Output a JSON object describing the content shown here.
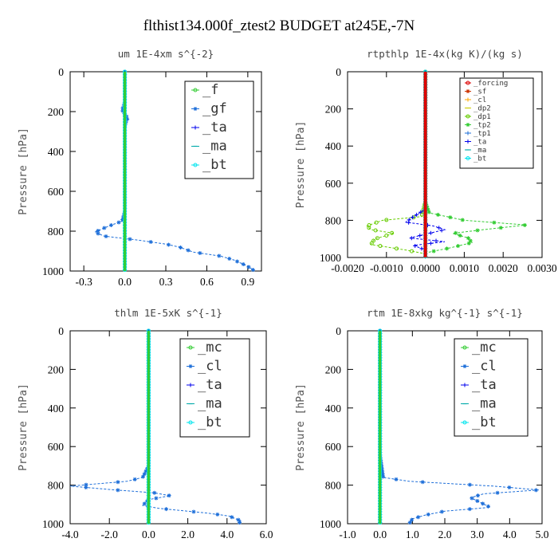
{
  "figure_title": "flthist134.000f_ztest2  BUDGET at245E,-7N",
  "chart_data": [
    {
      "type": "line",
      "title": "um  1E-4xm s^{-2}",
      "ylabel": "Pressure [hPa]",
      "xlim": [
        -0.4,
        1.0
      ],
      "ylim": [
        1000,
        0
      ],
      "xticks": [
        "-0.3",
        "0.0",
        "0.3",
        "0.6",
        "0.9"
      ],
      "xtick_values": [
        -0.3,
        0.0,
        0.3,
        0.6,
        0.9
      ],
      "yticks": [
        "0",
        "200",
        "400",
        "600",
        "800",
        "1000"
      ],
      "ytick_values": [
        0,
        200,
        400,
        600,
        800,
        1000
      ],
      "legend": {
        "placement": "top-right",
        "size": "big"
      },
      "series": [
        {
          "name": "_f",
          "color": "#33cc33",
          "marker": "o",
          "values": [
            [
              0,
              0
            ],
            [
              0,
              1000
            ]
          ]
        },
        {
          "name": "_gf",
          "color": "#1e6fd9",
          "marker": "*",
          "values": [
            [
              0,
              0
            ],
            [
              0,
              150
            ],
            [
              -0.01,
              175
            ],
            [
              -0.02,
              190
            ],
            [
              -0.01,
              205
            ],
            [
              0.01,
              220
            ],
            [
              0.02,
              235
            ],
            [
              0.01,
              250
            ],
            [
              0,
              275
            ],
            [
              0,
              700
            ],
            [
              -0.02,
              750
            ],
            [
              -0.12,
              775
            ],
            [
              -0.22,
              805
            ],
            [
              -0.15,
              825
            ],
            [
              0.1,
              845
            ],
            [
              0.3,
              865
            ],
            [
              0.4,
              880
            ],
            [
              0.5,
              905
            ],
            [
              0.7,
              925
            ],
            [
              0.8,
              945
            ],
            [
              0.88,
              970
            ],
            [
              0.92,
              985
            ],
            [
              0.95,
              1000
            ]
          ]
        },
        {
          "name": "_ta",
          "color": "#0000ee",
          "marker": "+",
          "values": [
            [
              0,
              0
            ],
            [
              0,
              1000
            ]
          ]
        },
        {
          "name": "_ma",
          "color": "#00aaaa",
          "marker": "-",
          "values": [
            [
              0,
              0
            ],
            [
              0,
              1000
            ]
          ]
        },
        {
          "name": "_bt",
          "color": "#00e5ee",
          "marker": "o",
          "values": [
            [
              0,
              0
            ],
            [
              0,
              1000
            ]
          ]
        }
      ]
    },
    {
      "type": "line",
      "title": "rtpthlp  1E-4x(kg K)/(kg s)",
      "ylabel": "Pressure [hPa]",
      "xlim": [
        -0.002,
        0.003
      ],
      "ylim": [
        1000,
        0
      ],
      "xticks": [
        "-0.0020",
        "-0.0010",
        "0.0000",
        "0.0010",
        "0.0020",
        "0.0030"
      ],
      "xtick_values": [
        -0.002,
        -0.001,
        0.0,
        0.001,
        0.002,
        0.003
      ],
      "yticks": [
        "0",
        "200",
        "400",
        "600",
        "800",
        "1000"
      ],
      "ytick_values": [
        0,
        200,
        400,
        600,
        800,
        1000
      ],
      "legend": {
        "placement": "top-right",
        "size": "small"
      },
      "series": [
        {
          "name": "_forcing",
          "color": "#dd0000",
          "marker": "o",
          "values": [
            [
              0,
              0
            ],
            [
              0,
              1000
            ]
          ]
        },
        {
          "name": "_sf",
          "color": "#cc3300",
          "marker": "*",
          "values": [
            [
              0,
              0
            ],
            [
              0,
              1000
            ]
          ]
        },
        {
          "name": "_cl",
          "color": "#ffaa00",
          "marker": "+",
          "values": [
            [
              0,
              0
            ],
            [
              0,
              1000
            ]
          ]
        },
        {
          "name": "_dp2",
          "color": "#cccc00",
          "marker": "-",
          "values": [
            [
              0,
              0
            ],
            [
              0,
              1000
            ]
          ]
        },
        {
          "name": "_dp1",
          "color": "#66cc00",
          "marker": "o",
          "values": [
            [
              0,
              0
            ],
            [
              0,
              700
            ],
            [
              -0.0001,
              780
            ],
            [
              -0.0011,
              800
            ],
            [
              -0.0015,
              830
            ],
            [
              -0.0014,
              850
            ],
            [
              -0.0008,
              870
            ],
            [
              -0.0013,
              900
            ],
            [
              -0.0014,
              930
            ],
            [
              -0.0005,
              960
            ],
            [
              0,
              980
            ],
            [
              0,
              1000
            ]
          ]
        },
        {
          "name": "_tp2",
          "color": "#33cc33",
          "marker": "*",
          "values": [
            [
              0,
              0
            ],
            [
              0,
              700
            ],
            [
              0.0001,
              760
            ],
            [
              0.001,
              800
            ],
            [
              0.0026,
              825
            ],
            [
              0.0015,
              850
            ],
            [
              0.0007,
              870
            ],
            [
              0.0011,
              895
            ],
            [
              0.0012,
              920
            ],
            [
              0.0006,
              950
            ],
            [
              0,
              975
            ],
            [
              0,
              1000
            ]
          ]
        },
        {
          "name": "_tp1",
          "color": "#1e6fd9",
          "marker": "+",
          "values": [
            [
              0,
              0
            ],
            [
              0,
              1000
            ]
          ]
        },
        {
          "name": "_ta",
          "color": "#0000ee",
          "marker": "+",
          "values": [
            [
              0,
              0
            ],
            [
              0,
              740
            ],
            [
              -0.0003,
              780
            ],
            [
              -0.0005,
              810
            ],
            [
              0.0002,
              830
            ],
            [
              0.0005,
              850
            ],
            [
              0,
              875
            ],
            [
              -0.0004,
              895
            ],
            [
              0.0005,
              915
            ],
            [
              -0.0003,
              935
            ],
            [
              0,
              960
            ],
            [
              0,
              1000
            ]
          ]
        },
        {
          "name": "_ma",
          "color": "#00aaaa",
          "marker": "-",
          "values": [
            [
              0,
              0
            ],
            [
              0,
              1000
            ]
          ]
        },
        {
          "name": "_bt",
          "color": "#00e5ee",
          "marker": "o",
          "values": [
            [
              0,
              0
            ],
            [
              0,
              1000
            ]
          ]
        }
      ]
    },
    {
      "type": "line",
      "title": "thlm  1E-5xK s^{-1}",
      "ylabel": "Pressure [hPa]",
      "xlim": [
        -4.0,
        6.0
      ],
      "ylim": [
        1000,
        0
      ],
      "xticks": [
        "-4.0",
        "-2.0",
        "0.0",
        "2.0",
        "4.0",
        "6.0"
      ],
      "xtick_values": [
        -4.0,
        -2.0,
        0.0,
        2.0,
        4.0,
        6.0
      ],
      "yticks": [
        "0",
        "200",
        "400",
        "600",
        "800",
        "1000"
      ],
      "ytick_values": [
        0,
        200,
        400,
        600,
        800,
        1000
      ],
      "legend": {
        "placement": "top-right",
        "size": "big"
      },
      "series": [
        {
          "name": "_mc",
          "color": "#33cc33",
          "marker": "o",
          "values": [
            [
              0,
              0
            ],
            [
              0,
              1000
            ]
          ]
        },
        {
          "name": "_cl",
          "color": "#1e6fd9",
          "marker": "*",
          "values": [
            [
              0,
              0
            ],
            [
              0,
              700
            ],
            [
              -0.3,
              760
            ],
            [
              -1.1,
              780
            ],
            [
              -4.0,
              805
            ],
            [
              -1.7,
              825
            ],
            [
              0.3,
              840
            ],
            [
              1.1,
              855
            ],
            [
              0,
              875
            ],
            [
              -0.3,
              905
            ],
            [
              0.5,
              920
            ],
            [
              2.0,
              935
            ],
            [
              3.0,
              945
            ],
            [
              4.1,
              960
            ],
            [
              4.7,
              985
            ],
            [
              4.6,
              1000
            ]
          ]
        },
        {
          "name": "_ta",
          "color": "#0000ee",
          "marker": "+",
          "values": [
            [
              0,
              0
            ],
            [
              0,
              1000
            ]
          ]
        },
        {
          "name": "_ma",
          "color": "#00aaaa",
          "marker": "-",
          "values": [
            [
              0,
              0
            ],
            [
              0,
              1000
            ]
          ]
        },
        {
          "name": "_bt",
          "color": "#00e5ee",
          "marker": "o",
          "values": [
            [
              0,
              0
            ],
            [
              0,
              1000
            ]
          ]
        }
      ]
    },
    {
      "type": "line",
      "title": "rtm  1E-8xkg kg^{-1} s^{-1}",
      "ylabel": "Pressure [hPa]",
      "xlim": [
        -1.0,
        5.0
      ],
      "ylim": [
        1000,
        0
      ],
      "xticks": [
        "-1.0",
        "0.0",
        "1.0",
        "2.0",
        "3.0",
        "4.0",
        "5.0"
      ],
      "xtick_values": [
        -1.0,
        0.0,
        1.0,
        2.0,
        3.0,
        4.0,
        5.0
      ],
      "yticks": [
        "0",
        "200",
        "400",
        "600",
        "800",
        "1000"
      ],
      "ytick_values": [
        0,
        200,
        400,
        600,
        800,
        1000
      ],
      "legend": {
        "placement": "top-right",
        "size": "big"
      },
      "series": [
        {
          "name": "_mc",
          "color": "#33cc33",
          "marker": "o",
          "values": [
            [
              0,
              0
            ],
            [
              0,
              1000
            ]
          ]
        },
        {
          "name": "_cl",
          "color": "#1e6fd9",
          "marker": "*",
          "values": [
            [
              0,
              0
            ],
            [
              0,
              640
            ],
            [
              0.05,
              700
            ],
            [
              0.1,
              760
            ],
            [
              0.9,
              780
            ],
            [
              3.5,
              805
            ],
            [
              4.9,
              825
            ],
            [
              3.2,
              845
            ],
            [
              2.8,
              865
            ],
            [
              3.1,
              890
            ],
            [
              3.4,
              915
            ],
            [
              2.0,
              935
            ],
            [
              1.4,
              955
            ],
            [
              1.0,
              975
            ],
            [
              0.9,
              1000
            ]
          ]
        },
        {
          "name": "_ta",
          "color": "#0000ee",
          "marker": "+",
          "values": [
            [
              0,
              0
            ],
            [
              0,
              1000
            ]
          ]
        },
        {
          "name": "_ma",
          "color": "#00aaaa",
          "marker": "-",
          "values": [
            [
              0,
              0
            ],
            [
              0,
              1000
            ]
          ]
        },
        {
          "name": "_bt",
          "color": "#00e5ee",
          "marker": "o",
          "values": [
            [
              0,
              0
            ],
            [
              0,
              1000
            ]
          ]
        }
      ]
    }
  ]
}
